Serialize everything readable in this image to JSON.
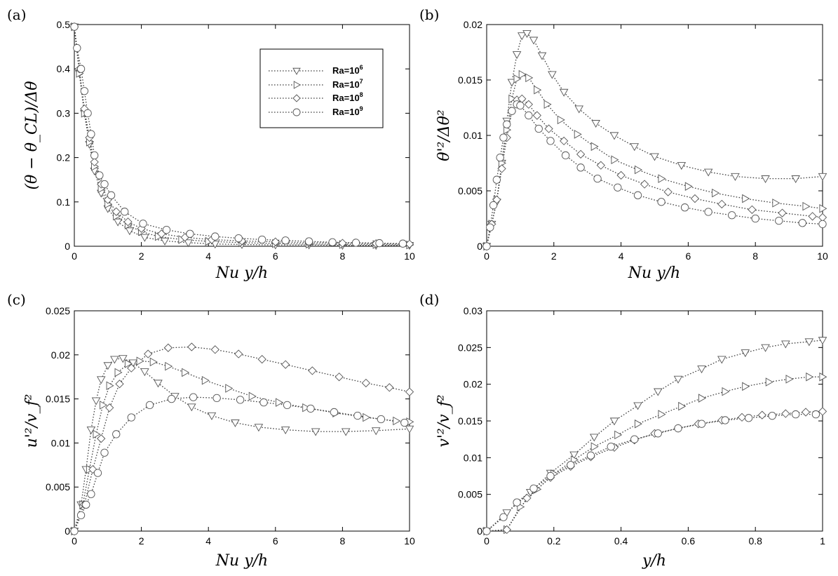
{
  "chart_data": [
    {
      "panel": "(a)",
      "type": "line",
      "xlabel": "Nu y/h",
      "ylabel": "(θ − θ_CL)/Δθ",
      "xlim": [
        0,
        10
      ],
      "ylim": [
        0,
        0.5
      ],
      "xticks": [
        "0",
        "2",
        "4",
        "6",
        "8",
        "10"
      ],
      "yticks": [
        "0",
        "0.1",
        "0.2",
        "0.3",
        "0.4",
        "0.5"
      ],
      "legend": {
        "location": "top-right",
        "entries": [
          {
            "base": "Ra=10",
            "exp": "6",
            "marker": "triangle-down"
          },
          {
            "base": "Ra=10",
            "exp": "7",
            "marker": "triangle-right"
          },
          {
            "base": "Ra=10",
            "exp": "8",
            "marker": "diamond"
          },
          {
            "base": "Ra=10",
            "exp": "9",
            "marker": "circle"
          }
        ]
      },
      "series": [
        {
          "name": "Ra=10^6",
          "marker": "triangle-down",
          "x": [
            0,
            0.15,
            0.3,
            0.45,
            0.6,
            0.8,
            1.0,
            1.3,
            1.65,
            2.1,
            2.7,
            3.4,
            4.2,
            5.0,
            6.0,
            7.0,
            8.0,
            9.0,
            10.0
          ],
          "y": [
            0.495,
            0.39,
            0.3,
            0.23,
            0.17,
            0.12,
            0.085,
            0.055,
            0.035,
            0.02,
            0.012,
            0.008,
            0.005,
            0.004,
            0.003,
            0.003,
            0.002,
            0.002,
            0.002
          ]
        },
        {
          "name": "Ra=10^7",
          "marker": "triangle-right",
          "x": [
            0,
            0.15,
            0.3,
            0.45,
            0.6,
            0.8,
            1.0,
            1.25,
            1.6,
            2.0,
            2.5,
            3.2,
            4.0,
            5.0,
            6.0,
            7.0,
            8.0,
            9.0,
            10.0
          ],
          "y": [
            0.495,
            0.39,
            0.3,
            0.235,
            0.18,
            0.13,
            0.095,
            0.068,
            0.048,
            0.033,
            0.022,
            0.015,
            0.011,
            0.008,
            0.006,
            0.005,
            0.004,
            0.004,
            0.003
          ]
        },
        {
          "name": "Ra=10^8",
          "marker": "diamond",
          "x": [
            0,
            0.15,
            0.3,
            0.45,
            0.6,
            0.8,
            1.0,
            1.25,
            1.6,
            2.0,
            2.6,
            3.3,
            4.1,
            5.0,
            6.0,
            7.0,
            8.0,
            9.0,
            10.0
          ],
          "y": [
            0.495,
            0.4,
            0.31,
            0.245,
            0.19,
            0.14,
            0.105,
            0.078,
            0.055,
            0.04,
            0.028,
            0.02,
            0.015,
            0.012,
            0.01,
            0.008,
            0.007,
            0.006,
            0.005
          ]
        },
        {
          "name": "Ra=10^9",
          "marker": "circle",
          "x": [
            0,
            0.08,
            0.2,
            0.3,
            0.4,
            0.5,
            0.6,
            0.75,
            0.9,
            1.1,
            1.5,
            2.05,
            2.75,
            3.45,
            4.2,
            4.9,
            5.6,
            6.3,
            7.0,
            7.7,
            8.4,
            9.1,
            9.8
          ],
          "y": [
            0.495,
            0.447,
            0.4,
            0.35,
            0.3,
            0.253,
            0.205,
            0.16,
            0.14,
            0.115,
            0.078,
            0.051,
            0.037,
            0.028,
            0.022,
            0.018,
            0.015,
            0.013,
            0.011,
            0.009,
            0.008,
            0.007,
            0.006
          ]
        }
      ]
    },
    {
      "panel": "(b)",
      "type": "line",
      "xlabel": "Nu y/h",
      "ylabel": "θ'²/Δθ²",
      "xlim": [
        0,
        10
      ],
      "ylim": [
        0,
        0.02
      ],
      "xticks": [
        "0",
        "2",
        "4",
        "6",
        "8",
        "10"
      ],
      "yticks": [
        "0",
        "0.005",
        "0.01",
        "0.015",
        "0.02"
      ],
      "series": [
        {
          "name": "Ra=10^6",
          "marker": "triangle-down",
          "x": [
            0,
            0.15,
            0.3,
            0.45,
            0.6,
            0.75,
            0.9,
            1.05,
            1.2,
            1.4,
            1.65,
            1.95,
            2.3,
            2.75,
            3.25,
            3.8,
            4.4,
            5.0,
            5.8,
            6.6,
            7.4,
            8.3,
            9.2,
            10.0
          ],
          "y": [
            0,
            0.002,
            0.004,
            0.0075,
            0.0113,
            0.0148,
            0.0173,
            0.019,
            0.0192,
            0.0186,
            0.0172,
            0.0155,
            0.0139,
            0.0124,
            0.0111,
            0.01,
            0.009,
            0.0081,
            0.0073,
            0.0067,
            0.0063,
            0.0061,
            0.0061,
            0.0063
          ]
        },
        {
          "name": "Ra=10^7",
          "marker": "triangle-right",
          "x": [
            0,
            0.15,
            0.3,
            0.45,
            0.6,
            0.75,
            0.9,
            1.05,
            1.25,
            1.5,
            1.8,
            2.2,
            2.7,
            3.2,
            3.8,
            4.5,
            5.2,
            6.0,
            6.8,
            7.7,
            8.6,
            9.5,
            10.0
          ],
          "y": [
            0,
            0.002,
            0.0042,
            0.0075,
            0.0105,
            0.0133,
            0.0151,
            0.0155,
            0.0152,
            0.0141,
            0.0128,
            0.0114,
            0.0101,
            0.009,
            0.0078,
            0.0069,
            0.0061,
            0.0054,
            0.0048,
            0.0043,
            0.0039,
            0.0036,
            0.0034
          ]
        },
        {
          "name": "Ra=10^8",
          "marker": "diamond",
          "x": [
            0,
            0.15,
            0.3,
            0.45,
            0.6,
            0.75,
            0.9,
            1.05,
            1.25,
            1.5,
            1.85,
            2.3,
            2.8,
            3.4,
            4.0,
            4.7,
            5.4,
            6.2,
            7.0,
            7.9,
            8.8,
            9.7,
            10.0
          ],
          "y": [
            0,
            0.002,
            0.0042,
            0.007,
            0.0098,
            0.0122,
            0.0132,
            0.0133,
            0.0128,
            0.0118,
            0.0106,
            0.0095,
            0.0083,
            0.0073,
            0.0064,
            0.0056,
            0.0049,
            0.0043,
            0.0038,
            0.0033,
            0.003,
            0.0027,
            0.0026
          ]
        },
        {
          "name": "Ra=10^9",
          "marker": "circle",
          "x": [
            0,
            0.1,
            0.2,
            0.3,
            0.4,
            0.5,
            0.6,
            0.75,
            0.9,
            1.0,
            1.25,
            1.55,
            1.9,
            2.35,
            2.8,
            3.3,
            3.9,
            4.5,
            5.2,
            5.9,
            6.6,
            7.3,
            8.0,
            8.7,
            9.4,
            10.0
          ],
          "y": [
            0,
            0.0017,
            0.0037,
            0.006,
            0.008,
            0.0098,
            0.011,
            0.0122,
            0.0128,
            0.0127,
            0.0118,
            0.0106,
            0.0095,
            0.0082,
            0.0071,
            0.0061,
            0.0053,
            0.0046,
            0.004,
            0.0035,
            0.0031,
            0.0028,
            0.0025,
            0.0023,
            0.0021,
            0.002
          ]
        }
      ]
    },
    {
      "panel": "(c)",
      "type": "line",
      "xlabel": "Nu y/h",
      "ylabel": "u'²/v_f²",
      "xlim": [
        0,
        10
      ],
      "ylim": [
        0,
        0.025
      ],
      "xticks": [
        "0",
        "2",
        "4",
        "6",
        "8",
        "10"
      ],
      "yticks": [
        "0",
        "0.005",
        "0.01",
        "0.015",
        "0.02",
        "0.025"
      ],
      "series": [
        {
          "name": "Ra=10^6",
          "marker": "triangle-down",
          "x": [
            0,
            0.2,
            0.35,
            0.5,
            0.65,
            0.8,
            1.0,
            1.2,
            1.45,
            1.75,
            2.1,
            2.5,
            3.0,
            3.5,
            4.1,
            4.8,
            5.5,
            6.3,
            7.2,
            8.1,
            9.0,
            10.0
          ],
          "y": [
            0,
            0.003,
            0.007,
            0.0115,
            0.0148,
            0.0172,
            0.0188,
            0.0195,
            0.0196,
            0.0191,
            0.0181,
            0.0168,
            0.0153,
            0.0141,
            0.0131,
            0.0123,
            0.0118,
            0.0115,
            0.0113,
            0.0113,
            0.0114,
            0.0116
          ]
        },
        {
          "name": "Ra=10^7",
          "marker": "triangle-right",
          "x": [
            0,
            0.25,
            0.45,
            0.65,
            0.85,
            1.05,
            1.3,
            1.6,
            1.95,
            2.35,
            2.8,
            3.3,
            3.9,
            4.6,
            5.3,
            6.1,
            6.9,
            7.8,
            8.7,
            9.6,
            10.0
          ],
          "y": [
            0,
            0.003,
            0.007,
            0.011,
            0.0143,
            0.0165,
            0.018,
            0.019,
            0.0193,
            0.0192,
            0.0187,
            0.018,
            0.0171,
            0.0162,
            0.0153,
            0.0146,
            0.014,
            0.0134,
            0.0129,
            0.0125,
            0.0124
          ]
        },
        {
          "name": "Ra=10^8",
          "marker": "diamond",
          "x": [
            0,
            0.3,
            0.55,
            0.8,
            1.05,
            1.35,
            1.7,
            2.2,
            2.8,
            3.5,
            4.2,
            4.9,
            5.6,
            6.3,
            7.1,
            7.9,
            8.7,
            9.4,
            10.0
          ],
          "y": [
            0,
            0.003,
            0.007,
            0.0105,
            0.014,
            0.0167,
            0.0185,
            0.0201,
            0.0208,
            0.0209,
            0.0206,
            0.0201,
            0.0195,
            0.0189,
            0.0182,
            0.0175,
            0.0168,
            0.0163,
            0.0158
          ]
        },
        {
          "name": "Ra=10^9",
          "marker": "circle",
          "x": [
            0,
            0.2,
            0.35,
            0.5,
            0.7,
            0.9,
            1.25,
            1.7,
            2.25,
            2.9,
            3.55,
            4.25,
            4.95,
            5.65,
            6.35,
            7.05,
            7.75,
            8.45,
            9.15,
            9.85
          ],
          "y": [
            0,
            0.0018,
            0.003,
            0.0042,
            0.0066,
            0.0089,
            0.011,
            0.0129,
            0.0143,
            0.015,
            0.0152,
            0.0151,
            0.0149,
            0.0146,
            0.0143,
            0.0139,
            0.0135,
            0.0131,
            0.0127,
            0.0123
          ]
        }
      ]
    },
    {
      "panel": "(d)",
      "type": "line",
      "xlabel": "y/h",
      "ylabel": "v'²/v_f²",
      "xlim": [
        0,
        1
      ],
      "ylim": [
        0,
        0.03
      ],
      "xticks": [
        "0",
        "0.2",
        "0.4",
        "0.6",
        "0.8",
        "1"
      ],
      "yticks": [
        "0",
        "0.005",
        "0.01",
        "0.015",
        "0.02",
        "0.025",
        "0.03"
      ],
      "series": [
        {
          "name": "Ra=10^6",
          "marker": "triangle-down",
          "x": [
            0,
            0.06,
            0.13,
            0.19,
            0.26,
            0.32,
            0.38,
            0.45,
            0.51,
            0.57,
            0.64,
            0.7,
            0.77,
            0.83,
            0.89,
            0.96,
            1.0
          ],
          "y": [
            0,
            0.0025,
            0.0053,
            0.0079,
            0.0104,
            0.0128,
            0.015,
            0.0171,
            0.019,
            0.0207,
            0.0221,
            0.0234,
            0.0243,
            0.025,
            0.0255,
            0.0258,
            0.026
          ]
        },
        {
          "name": "Ra=10^7",
          "marker": "triangle-right",
          "x": [
            0,
            0.06,
            0.1,
            0.15,
            0.2,
            0.26,
            0.32,
            0.39,
            0.45,
            0.52,
            0.58,
            0.64,
            0.71,
            0.77,
            0.84,
            0.9,
            0.96,
            1.0
          ],
          "y": [
            0,
            0.0002,
            0.0033,
            0.0057,
            0.0078,
            0.0097,
            0.0115,
            0.0131,
            0.0146,
            0.0159,
            0.017,
            0.0181,
            0.019,
            0.0197,
            0.0203,
            0.0207,
            0.021,
            0.021
          ]
        },
        {
          "name": "Ra=10^8",
          "marker": "diamond",
          "x": [
            0,
            0.06,
            0.12,
            0.19,
            0.25,
            0.31,
            0.38,
            0.44,
            0.5,
            0.57,
            0.63,
            0.7,
            0.76,
            0.82,
            0.89,
            0.95,
            1.0
          ],
          "y": [
            0,
            0.0002,
            0.0045,
            0.0073,
            0.0088,
            0.0101,
            0.0114,
            0.0124,
            0.0133,
            0.014,
            0.0146,
            0.0151,
            0.0155,
            0.0158,
            0.016,
            0.0162,
            0.0163
          ]
        },
        {
          "name": "Ra=10^9",
          "marker": "circle",
          "x": [
            0,
            0.05,
            0.09,
            0.14,
            0.19,
            0.25,
            0.31,
            0.37,
            0.44,
            0.51,
            0.57,
            0.64,
            0.71,
            0.78,
            0.85,
            0.92,
            0.98
          ],
          "y": [
            0,
            0.0019,
            0.0039,
            0.0058,
            0.0075,
            0.009,
            0.0103,
            0.0115,
            0.0125,
            0.0133,
            0.014,
            0.0146,
            0.0151,
            0.0154,
            0.0157,
            0.0159,
            0.0159
          ]
        }
      ]
    }
  ]
}
